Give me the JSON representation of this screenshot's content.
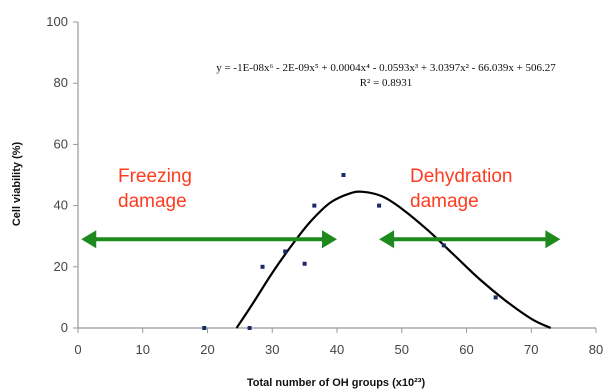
{
  "chart_data": {
    "type": "scatter",
    "xlabel": "Total number of OH  groups (x10²³)",
    "ylabel": "Cell viability (%)",
    "xlim": [
      0,
      80
    ],
    "ylim": [
      0,
      100
    ],
    "x_ticks": [
      0,
      10,
      20,
      30,
      40,
      50,
      60,
      70,
      80
    ],
    "y_ticks": [
      0,
      20,
      40,
      60,
      80,
      100
    ],
    "grid": false,
    "points": [
      {
        "x": 19.5,
        "y": 0
      },
      {
        "x": 26.5,
        "y": 0
      },
      {
        "x": 28.5,
        "y": 20
      },
      {
        "x": 32,
        "y": 25
      },
      {
        "x": 35,
        "y": 21
      },
      {
        "x": 36.5,
        "y": 40
      },
      {
        "x": 41,
        "y": 50
      },
      {
        "x": 46.5,
        "y": 40
      },
      {
        "x": 56.5,
        "y": 27
      },
      {
        "x": 64.5,
        "y": 10
      }
    ],
    "trendline": {
      "equation": "y = -1E-08x⁶ - 2E-09x⁵ + 0.0004x⁴ - 0.0593x³ + 3.0397x² - 66.039x + 506.27",
      "r_squared": "R² = 0.8931",
      "curve": [
        {
          "x": 24.5,
          "y": 0
        },
        {
          "x": 27,
          "y": 8
        },
        {
          "x": 30,
          "y": 18
        },
        {
          "x": 33,
          "y": 27
        },
        {
          "x": 36,
          "y": 35
        },
        {
          "x": 39,
          "y": 41
        },
        {
          "x": 42,
          "y": 44
        },
        {
          "x": 44,
          "y": 44.5
        },
        {
          "x": 47,
          "y": 43
        },
        {
          "x": 50,
          "y": 39
        },
        {
          "x": 54,
          "y": 32
        },
        {
          "x": 58,
          "y": 24
        },
        {
          "x": 62,
          "y": 16
        },
        {
          "x": 66,
          "y": 9
        },
        {
          "x": 70,
          "y": 3
        },
        {
          "x": 73,
          "y": 0
        }
      ]
    },
    "annotations": [
      {
        "text_lines": [
          "Freezing",
          "damage"
        ],
        "color": "#ff3b1f"
      },
      {
        "text_lines": [
          "Dehydration",
          "damage"
        ],
        "color": "#ff3b1f"
      }
    ],
    "arrows": [
      {
        "from_x": 0.5,
        "to_x": 40,
        "y": 29,
        "style": "double-headed",
        "color": "#1e8a1e"
      },
      {
        "from_x": 46.5,
        "to_x": 74.5,
        "y": 29,
        "style": "double-headed",
        "color": "#1e8a1e"
      }
    ],
    "colors": {
      "points": "#1a2a66",
      "curve": "#000000",
      "arrow": "#1e8a1e",
      "annotation": "#ff3b1f",
      "axis": "#999999"
    }
  }
}
